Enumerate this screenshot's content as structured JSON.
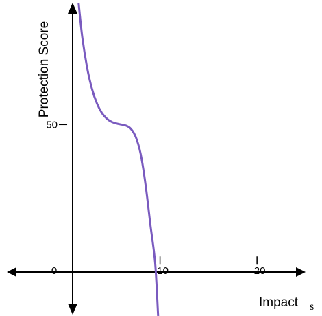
{
  "chart_data": {
    "type": "line",
    "title": "",
    "xlabel": "Impact",
    "ylabel": "Protection Score",
    "x_unit_label": "s",
    "xlim": [
      -6.5,
      26.7
    ],
    "ylim": [
      -20.4,
      95.8
    ],
    "x_ticks": [
      {
        "value": 0,
        "label": "0"
      },
      {
        "value": 10,
        "label": "10"
      },
      {
        "value": 20,
        "label": "20"
      }
    ],
    "y_ticks": [
      {
        "value": 50,
        "label": "50"
      }
    ],
    "grid": false,
    "series": [
      {
        "color": "#7a5bbf",
        "x": [
          1.6,
          2.0,
          2.5,
          3.0,
          3.5,
          4.0,
          4.5,
          5.0,
          5.5,
          6.0,
          6.5,
          7.0,
          7.5,
          8.0,
          8.5,
          9.0,
          9.5,
          9.8
        ],
        "y": [
          94.8,
          81.7,
          70.6,
          62.9,
          57.7,
          54.3,
          52.2,
          51.0,
          50.4,
          50.0,
          49.6,
          48.4,
          45.4,
          39.2,
          28.1,
          13.3,
          -1.1,
          -20.4
        ]
      }
    ]
  }
}
